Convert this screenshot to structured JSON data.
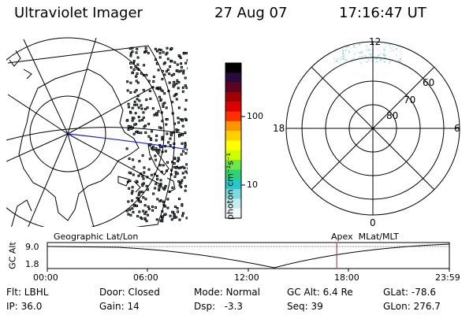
{
  "header": {
    "instrument": "Ultraviolet Imager",
    "date": "27 Aug 07",
    "time": "17:16:47 UT"
  },
  "colorbar": {
    "unit_label": "photon cm⁻²s⁻¹",
    "tick_100": "100",
    "tick_10": "10",
    "colors": [
      "#000000",
      "#2a0a3c",
      "#600020",
      "#a00000",
      "#dd0000",
      "#ff3000",
      "#ff9400",
      "#ffd000",
      "#ffff00",
      "#cdff00",
      "#6ee84a",
      "#2fd07a",
      "#28c8c8",
      "#7ed8dc",
      "#c8ecee",
      "#f0f8f8"
    ]
  },
  "left_map": {
    "label": "Geographic Lat/Lon"
  },
  "right_map": {
    "label": "Apex  MLat/MLT",
    "mlt_top": "12",
    "mlt_left": "18",
    "mlt_right": "6",
    "mlt_bottom": "0",
    "lat_60": "60",
    "lat_70": "70",
    "lat_80": "80"
  },
  "altitude_plot": {
    "axis_label": "GC Alt",
    "y_top": "9.0",
    "y_bottom": "1.8",
    "x_ticks": [
      "00:00",
      "06:00",
      "12:00",
      "18:00",
      "23:59"
    ],
    "marker_hour": 17.28,
    "marker_color": "#c04060"
  },
  "status": {
    "flt": "Flt: LBHL",
    "ip": "IP: 36.0",
    "door": "Door: Closed",
    "gain": "Gain: 14",
    "mode": "Mode: Normal",
    "dsp": "Dsp:   -3.3",
    "gcalt": "GC Alt: 6.4 Re",
    "seq": "Seq: 39",
    "glat": "GLat: -78.6",
    "glon": "GLon: 276.7"
  }
}
